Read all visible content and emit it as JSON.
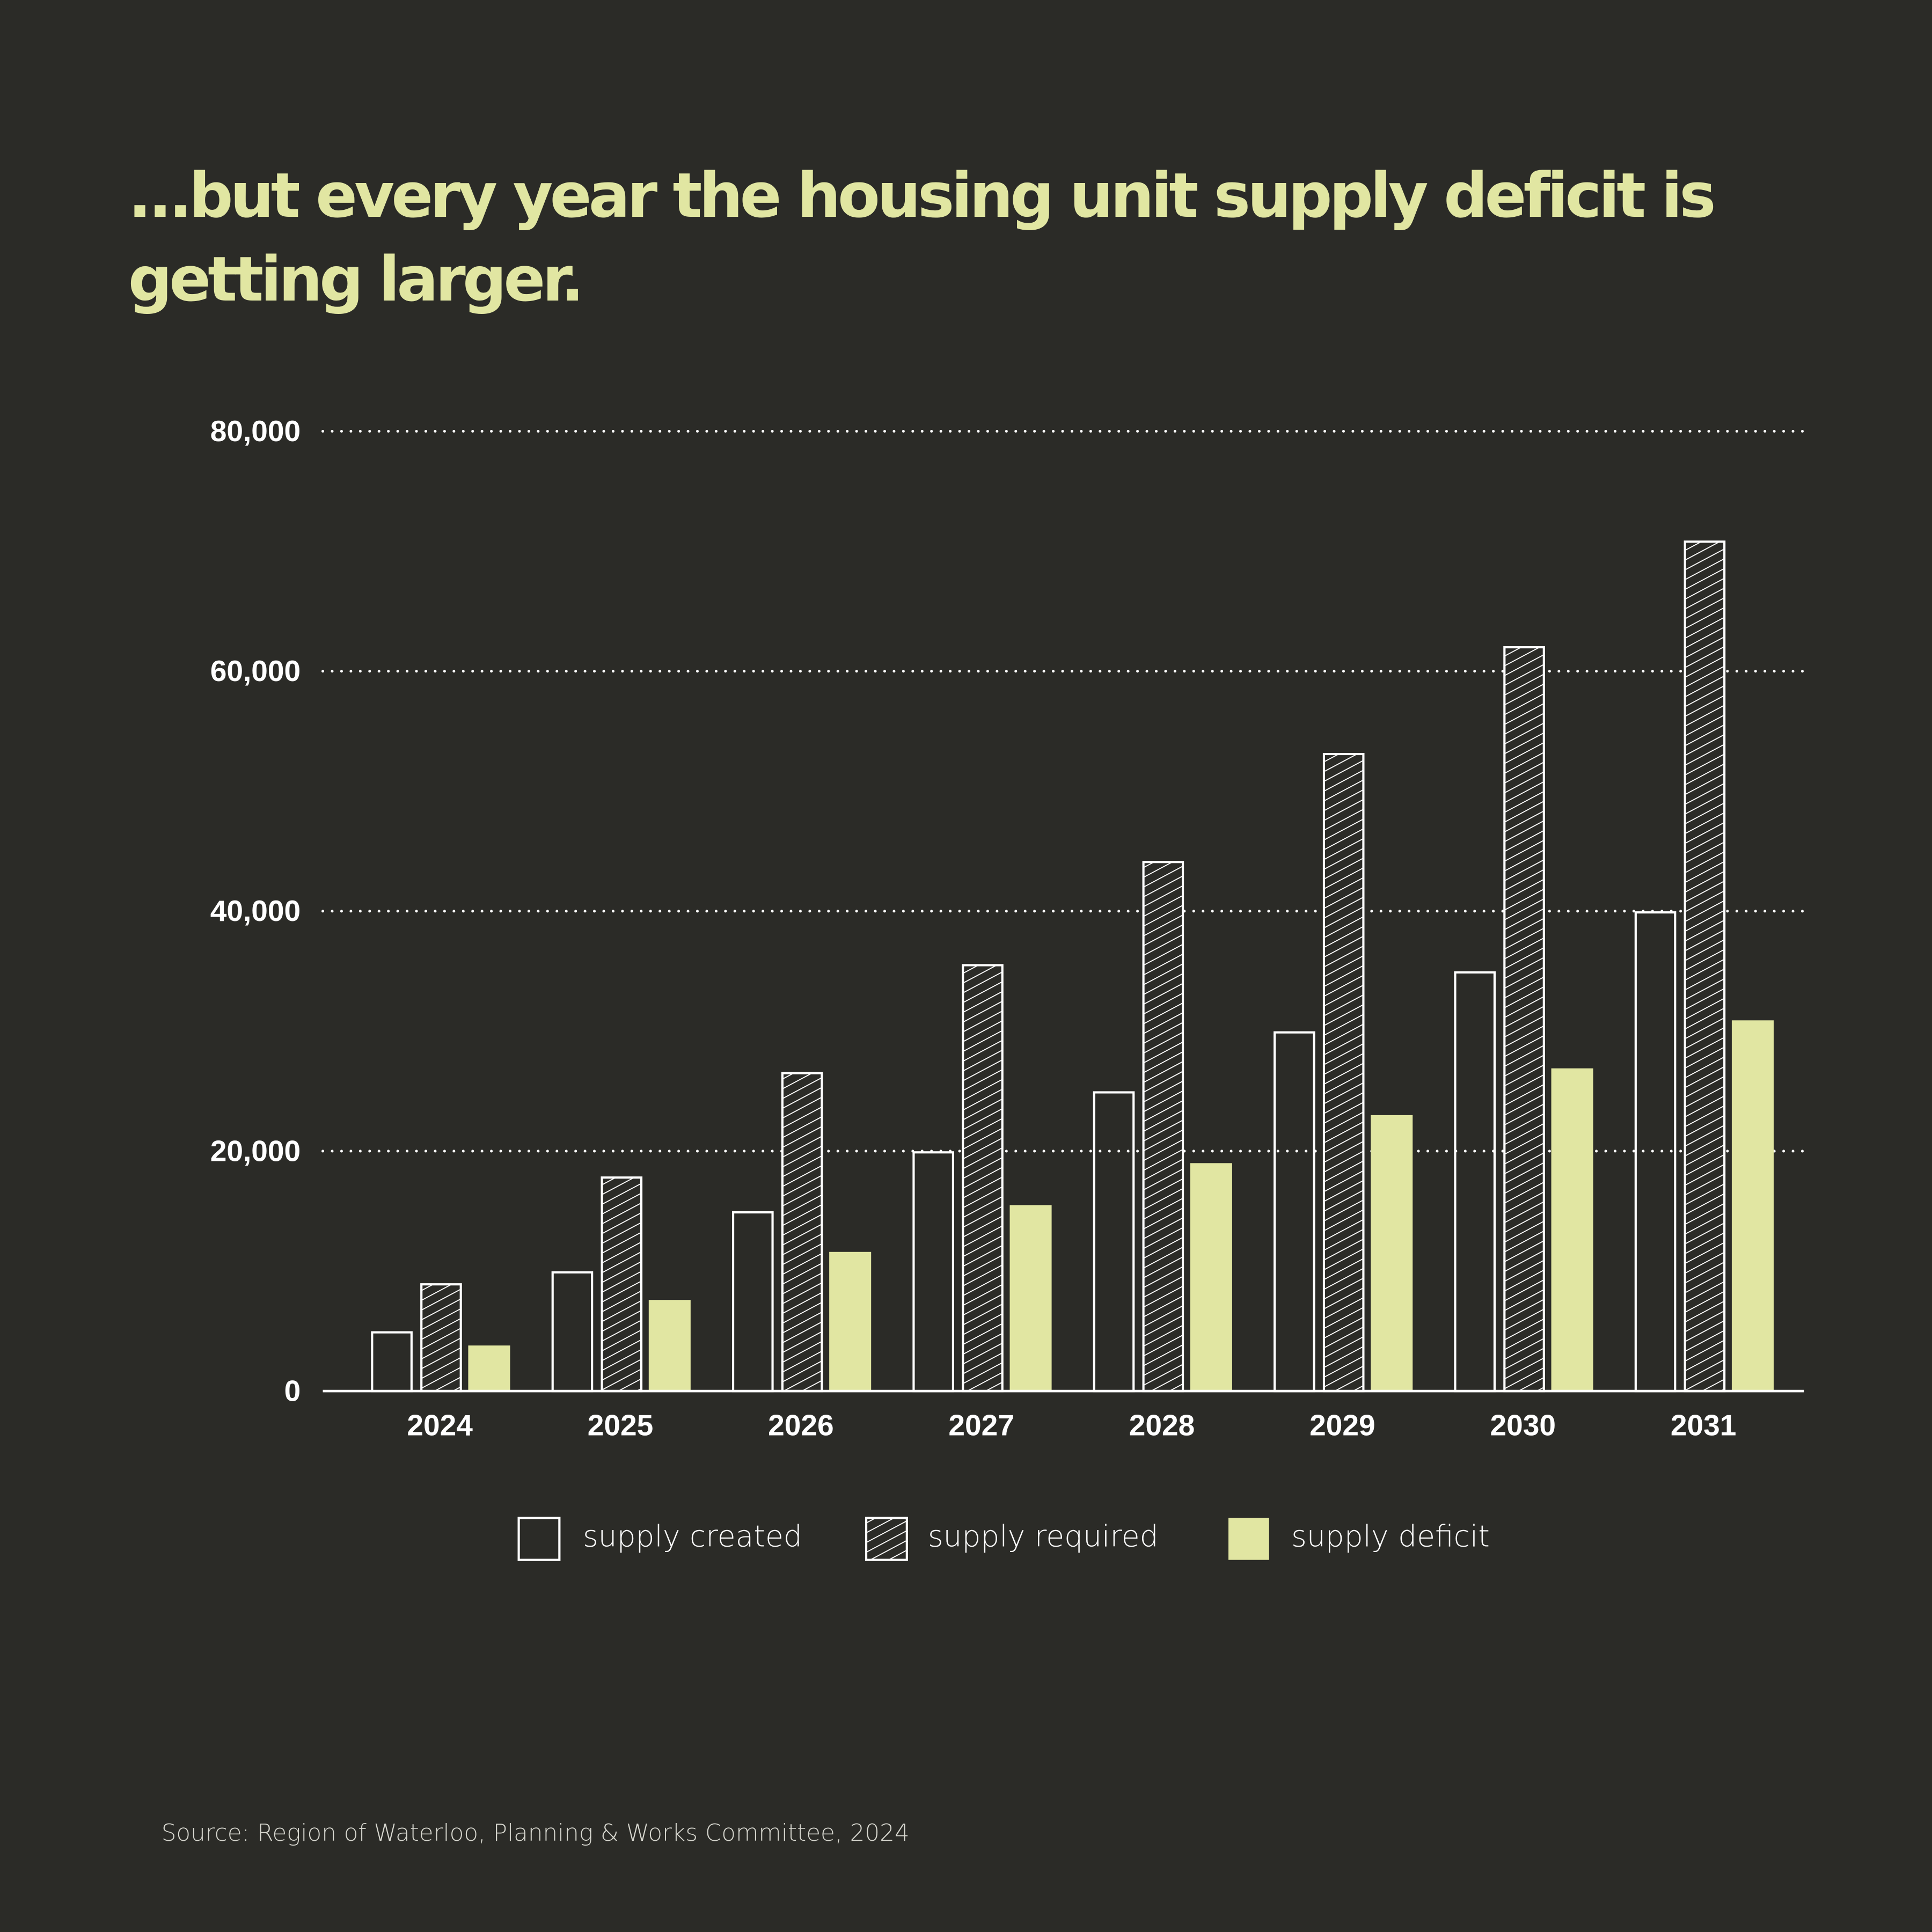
{
  "title_lines": [
    "...but every year the housing unit supply deficit is",
    "getting larger."
  ],
  "source": "Source: Region of Waterloo, Planning & Works Committee, 2024",
  "colors": {
    "background": "#2b2b27",
    "accent": "#e1e6a2",
    "outline": "#ffffff"
  },
  "chart_data": {
    "type": "bar",
    "title": "...but every year the housing unit supply deficit is getting larger.",
    "xlabel": "",
    "ylabel": "",
    "ylim": [
      0,
      80000
    ],
    "yticks": [
      0,
      20000,
      40000,
      60000,
      80000
    ],
    "ytick_labels": [
      "0",
      "20,000",
      "40,000",
      "60,000",
      "80,000"
    ],
    "grid": "horizontal dotted",
    "legend_position": "bottom-center",
    "categories": [
      "2024",
      "2025",
      "2026",
      "2027",
      "2028",
      "2029",
      "2030",
      "2031"
    ],
    "series": [
      {
        "name": "supply created",
        "style": "outline",
        "values": [
          5000,
          10000,
          15000,
          20000,
          25000,
          30000,
          35000,
          40000
        ]
      },
      {
        "name": "supply required",
        "style": "hatched",
        "values": [
          9000,
          17900,
          26600,
          35600,
          44200,
          53200,
          62100,
          70900
        ]
      },
      {
        "name": "supply deficit",
        "style": "filled",
        "values": [
          3800,
          7600,
          11600,
          15500,
          19000,
          23000,
          26900,
          30900
        ]
      }
    ]
  }
}
